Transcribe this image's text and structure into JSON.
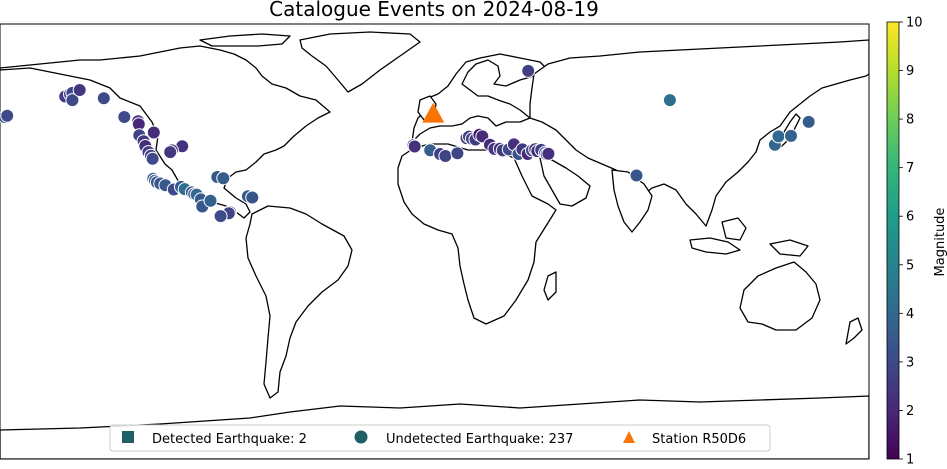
{
  "title": "Catalogue Events on 2024-08-19",
  "colorbar": {
    "label": "Magnitude",
    "min": 1,
    "max": 10,
    "ticks": [
      "1",
      "2",
      "3",
      "4",
      "5",
      "6",
      "7",
      "8",
      "9",
      "10"
    ],
    "colormap": "viridis"
  },
  "legend": {
    "items": [
      {
        "marker": "square",
        "color": "#1f5f66",
        "label": "Detected Earthquake: 2"
      },
      {
        "marker": "circle",
        "color": "#1f5f66",
        "label": "Undetected Earthquake: 237"
      },
      {
        "marker": "triangle",
        "color": "#f97306",
        "label": "Station R50D6"
      }
    ]
  },
  "station": {
    "name": "R50D6",
    "lon": -0.5,
    "lat": 52.5,
    "color": "#f97306"
  },
  "projection": "plate-carree",
  "extent": {
    "lon": [
      -180,
      180
    ],
    "lat": [
      -90,
      90
    ]
  },
  "events": [
    {
      "lon": -178,
      "lat": 51.5,
      "mag": 3.3
    },
    {
      "lon": -177,
      "lat": 52,
      "mag": 3.0
    },
    {
      "lon": -153,
      "lat": 60,
      "mag": 2.6
    },
    {
      "lon": -151,
      "lat": 61,
      "mag": 3.0
    },
    {
      "lon": -150,
      "lat": 61.5,
      "mag": 2.8
    },
    {
      "lon": -150,
      "lat": 58.5,
      "mag": 3.0
    },
    {
      "lon": -137,
      "lat": 59.3,
      "mag": 3.0
    },
    {
      "lon": -128.5,
      "lat": 51.5,
      "mag": 3.0
    },
    {
      "lon": -122.8,
      "lat": 49.8,
      "mag": 2.2
    },
    {
      "lon": -122.5,
      "lat": 48.5,
      "mag": 2.0
    },
    {
      "lon": -122.3,
      "lat": 44,
      "mag": 2.8
    },
    {
      "lon": -120.5,
      "lat": 41.5,
      "mag": 2.4
    },
    {
      "lon": -119.8,
      "lat": 39.5,
      "mag": 2.2
    },
    {
      "lon": -118.5,
      "lat": 37,
      "mag": 2.5
    },
    {
      "lon": -117.5,
      "lat": 35.5,
      "mag": 2.9
    },
    {
      "lon": -116.8,
      "lat": 34.2,
      "mag": 3.0
    },
    {
      "lon": -104.5,
      "lat": 39.4,
      "mag": 2.3
    },
    {
      "lon": -108.8,
      "lat": 37.7,
      "mag": 2.4
    },
    {
      "lon": -109.5,
      "lat": 37,
      "mag": 2.5
    },
    {
      "lon": -116.5,
      "lat": 26,
      "mag": 3.5
    },
    {
      "lon": -115.8,
      "lat": 25.2,
      "mag": 3.3
    },
    {
      "lon": -115,
      "lat": 24.5,
      "mag": 3.4
    },
    {
      "lon": -113.6,
      "lat": 24,
      "mag": 3.4
    },
    {
      "lon": -111.5,
      "lat": 23.3,
      "mag": 3.5
    },
    {
      "lon": -108,
      "lat": 21.5,
      "mag": 3.0
    },
    {
      "lon": -105,
      "lat": 22.6,
      "mag": 3.4
    },
    {
      "lon": -103.5,
      "lat": 21.7,
      "mag": 4.2
    },
    {
      "lon": -100.5,
      "lat": 20.3,
      "mag": 3.2
    },
    {
      "lon": -99.5,
      "lat": 19.6,
      "mag": 3.4
    },
    {
      "lon": -98.5,
      "lat": 19.4,
      "mag": 4.0
    },
    {
      "lon": -96.8,
      "lat": 17.4,
      "mag": 3.5
    },
    {
      "lon": -96.2,
      "lat": 14.5,
      "mag": 3.4
    },
    {
      "lon": -90,
      "lat": 26.7,
      "mag": 3.5
    },
    {
      "lon": -87.5,
      "lat": 26.2,
      "mag": 3.6
    },
    {
      "lon": -8.7,
      "lat": 39.8,
      "mag": 2.2
    },
    {
      "lon": -8.2,
      "lat": 39.3,
      "mag": 2.3
    },
    {
      "lon": -1.8,
      "lat": 37.8,
      "mag": 3.7
    },
    {
      "lon": 2.3,
      "lat": 36.2,
      "mag": 2.6
    },
    {
      "lon": 4.5,
      "lat": 35.4,
      "mag": 2.8
    },
    {
      "lon": 9.5,
      "lat": 36.5,
      "mag": 2.9
    },
    {
      "lon": 13.3,
      "lat": 42.8,
      "mag": 2.5
    },
    {
      "lon": 14.3,
      "lat": 43.4,
      "mag": 2.7
    },
    {
      "lon": 15.5,
      "lat": 42.5,
      "mag": 2.9
    },
    {
      "lon": 17,
      "lat": 42.2,
      "mag": 2.6
    },
    {
      "lon": 18.6,
      "lat": 44.2,
      "mag": 1.4
    },
    {
      "lon": 19.8,
      "lat": 43.5,
      "mag": 2.1
    },
    {
      "lon": 23,
      "lat": 40,
      "mag": 2.1
    },
    {
      "lon": 24.8,
      "lat": 38.3,
      "mag": 2.4
    },
    {
      "lon": 27.1,
      "lat": 38.4,
      "mag": 2.2
    },
    {
      "lon": 28.3,
      "lat": 37.7,
      "mag": 2.6
    },
    {
      "lon": 30.8,
      "lat": 38.1,
      "mag": 3.0
    },
    {
      "lon": 32.9,
      "lat": 40.2,
      "mag": 2.2
    },
    {
      "lon": 34.8,
      "lat": 36.2,
      "mag": 3.3
    },
    {
      "lon": 36.4,
      "lat": 38.1,
      "mag": 2.5
    },
    {
      "lon": 38.6,
      "lat": 36.2,
      "mag": 2.1
    },
    {
      "lon": 40.4,
      "lat": 37.7,
      "mag": 3.2
    },
    {
      "lon": 41.7,
      "lat": 38.2,
      "mag": 2.3
    },
    {
      "lon": 42.6,
      "lat": 37.4,
      "mag": 2.0
    },
    {
      "lon": 44.2,
      "lat": 37.9,
      "mag": 2.7
    },
    {
      "lon": 45.8,
      "lat": 36.7,
      "mag": 3.1
    },
    {
      "lon": 46.5,
      "lat": 36.1,
      "mag": 2.3
    },
    {
      "lon": 47.2,
      "lat": 36.3,
      "mag": 2.2
    },
    {
      "lon": 38.8,
      "lat": 70.6,
      "mag": 2.7
    },
    {
      "lon": 97.5,
      "lat": 58.5,
      "mag": 4.2
    },
    {
      "lon": 83.7,
      "lat": 27.3,
      "mag": 3.4
    },
    {
      "lon": 141,
      "lat": 40,
      "mag": 3.9
    },
    {
      "lon": 142.5,
      "lat": 43.5,
      "mag": 4.0
    },
    {
      "lon": 147.7,
      "lat": 43.7,
      "mag": 3.8
    },
    {
      "lon": 155,
      "lat": 49.5,
      "mag": 3.6
    },
    {
      "lon": -147,
      "lat": 62.7,
      "mag": 2.4
    },
    {
      "lon": -116.3,
      "lat": 45.1,
      "mag": 2.1
    },
    {
      "lon": -77.3,
      "lat": 18.7,
      "mag": 3.5
    },
    {
      "lon": -75.5,
      "lat": 18.2,
      "mag": 3.4
    },
    {
      "lon": -84.7,
      "lat": 12.1,
      "mag": 2.9
    },
    {
      "lon": -85.2,
      "lat": 11.7,
      "mag": 2.8
    },
    {
      "lon": -92.8,
      "lat": 16.9,
      "mag": 3.8
    },
    {
      "lon": -88.6,
      "lat": 10.5,
      "mag": 3.0
    }
  ],
  "points_outlined_white": true
}
